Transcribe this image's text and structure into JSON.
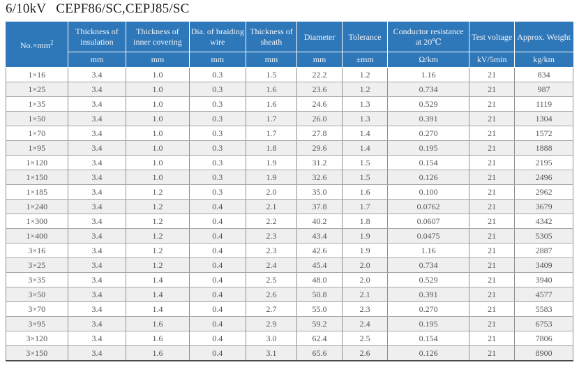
{
  "title": {
    "voltage": "6/10kV",
    "model": "CEPF86/SC,CEPJ85/SC"
  },
  "table": {
    "size_header": {
      "label": "No.×mm",
      "sup": "2"
    },
    "columns": [
      {
        "label": "Thickness of insulation",
        "unit": "mm"
      },
      {
        "label": "Thickness of inner covering",
        "unit": "mm"
      },
      {
        "label": "Dia. of braiding wire",
        "unit": "mm"
      },
      {
        "label": "Thickness of sheath",
        "unit": "mm"
      },
      {
        "label": "Diameter",
        "unit": "mm"
      },
      {
        "label": "Tolerance",
        "unit": "±mm"
      },
      {
        "label": "Conductor resistance at 20℃",
        "unit": "Ω/km"
      },
      {
        "label": "Test voltage",
        "unit": "kV/5min"
      },
      {
        "label": "Approx. Weight",
        "unit": "kg/km"
      }
    ],
    "rows": [
      [
        "1×16",
        "3.4",
        "1.0",
        "0.3",
        "1.5",
        "22.2",
        "1.2",
        "1.16",
        "21",
        "834"
      ],
      [
        "1×25",
        "3.4",
        "1.0",
        "0.3",
        "1.6",
        "23.6",
        "1.2",
        "0.734",
        "21",
        "987"
      ],
      [
        "1×35",
        "3.4",
        "1.0",
        "0.3",
        "1.6",
        "24.6",
        "1.3",
        "0.529",
        "21",
        "1119"
      ],
      [
        "1×50",
        "3.4",
        "1.0",
        "0.3",
        "1.7",
        "26.0",
        "1.3",
        "0.391",
        "21",
        "1304"
      ],
      [
        "1×70",
        "3.4",
        "1.0",
        "0.3",
        "1.7",
        "27.8",
        "1.4",
        "0.270",
        "21",
        "1572"
      ],
      [
        "1×95",
        "3.4",
        "1.0",
        "0.3",
        "1.8",
        "29.6",
        "1.4",
        "0.195",
        "21",
        "1888"
      ],
      [
        "1×120",
        "3.4",
        "1.0",
        "0.3",
        "1.9",
        "31.2",
        "1.5",
        "0.154",
        "21",
        "2195"
      ],
      [
        "1×150",
        "3.4",
        "1.0",
        "0.3",
        "1.9",
        "32.6",
        "1.5",
        "0.126",
        "21",
        "2496"
      ],
      [
        "1×185",
        "3.4",
        "1.2",
        "0.3",
        "2.0",
        "35.0",
        "1.6",
        "0.100",
        "21",
        "2962"
      ],
      [
        "1×240",
        "3.4",
        "1.2",
        "0.4",
        "2.1",
        "37.8",
        "1.7",
        "0.0762",
        "21",
        "3679"
      ],
      [
        "1×300",
        "3.4",
        "1.2",
        "0.4",
        "2.2",
        "40.2",
        "1.8",
        "0.0607",
        "21",
        "4342"
      ],
      [
        "1×400",
        "3.4",
        "1.2",
        "0.4",
        "2.3",
        "43.4",
        "1.9",
        "0.0475",
        "21",
        "5305"
      ],
      [
        "3×16",
        "3.4",
        "1.2",
        "0.4",
        "2.3",
        "42.6",
        "1.9",
        "1.16",
        "21",
        "2887"
      ],
      [
        "3×25",
        "3.4",
        "1.2",
        "0.4",
        "2.4",
        "45.4",
        "2.0",
        "0.734",
        "21",
        "3409"
      ],
      [
        "3×35",
        "3.4",
        "1.4",
        "0.4",
        "2.5",
        "48.0",
        "2.0",
        "0.529",
        "21",
        "3940"
      ],
      [
        "3×50",
        "3.4",
        "1.4",
        "0.4",
        "2.6",
        "50.8",
        "2.1",
        "0.391",
        "21",
        "4577"
      ],
      [
        "3×70",
        "3.4",
        "1.4",
        "0.4",
        "2.7",
        "55.0",
        "2.3",
        "0.270",
        "21",
        "5583"
      ],
      [
        "3×95",
        "3.4",
        "1.6",
        "0.4",
        "2.9",
        "59.2",
        "2.4",
        "0.195",
        "21",
        "6753"
      ],
      [
        "3×120",
        "3.4",
        "1.6",
        "0.4",
        "3.0",
        "62.4",
        "2.5",
        "0.154",
        "21",
        "7806"
      ],
      [
        "3×150",
        "3.4",
        "1.6",
        "0.4",
        "3.1",
        "65.6",
        "2.6",
        "0.126",
        "21",
        "8900"
      ]
    ]
  },
  "colors": {
    "header_bg": "#2e77b8",
    "header_text": "#f2f6fb",
    "row_stripe": "#efefef",
    "body_text": "#565656"
  }
}
